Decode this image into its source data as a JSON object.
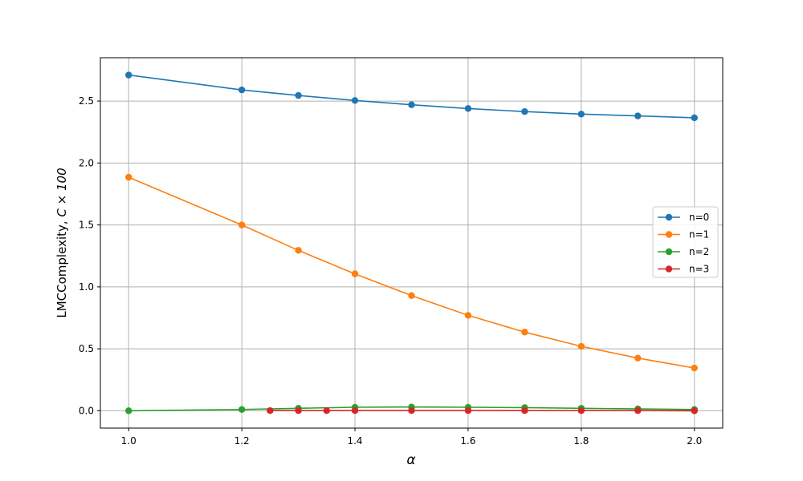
{
  "chart_data": {
    "type": "line",
    "xlabel": "α",
    "ylabel_prefix": "LMCComplexity, ",
    "ylabel_math": "C × 100",
    "xlim": [
      0.95,
      2.05
    ],
    "ylim": [
      -0.14,
      2.85
    ],
    "xticks": [
      1.0,
      1.2,
      1.4,
      1.6,
      1.8,
      2.0
    ],
    "yticks": [
      0.0,
      0.5,
      1.0,
      1.5,
      2.0,
      2.5
    ],
    "xtick_labels": [
      "1.0",
      "1.2",
      "1.4",
      "1.6",
      "1.8",
      "2.0"
    ],
    "ytick_labels": [
      "0.0",
      "0.5",
      "1.0",
      "1.5",
      "2.0",
      "2.5"
    ],
    "grid": true,
    "legend_position": "center-right",
    "series": [
      {
        "name": "n=0",
        "color": "#1f77b4",
        "x": [
          1.0,
          1.2,
          1.3,
          1.4,
          1.5,
          1.6,
          1.7,
          1.8,
          1.9,
          2.0
        ],
        "y": [
          2.71,
          2.59,
          2.545,
          2.505,
          2.47,
          2.44,
          2.415,
          2.395,
          2.38,
          2.365
        ]
      },
      {
        "name": "n=1",
        "color": "#ff7f0e",
        "x": [
          1.0,
          1.2,
          1.3,
          1.4,
          1.5,
          1.6,
          1.7,
          1.8,
          1.9,
          2.0
        ],
        "y": [
          1.885,
          1.5,
          1.295,
          1.105,
          0.93,
          0.77,
          0.635,
          0.52,
          0.425,
          0.345
        ]
      },
      {
        "name": "n=2",
        "color": "#2ca02c",
        "x": [
          1.0,
          1.2,
          1.3,
          1.4,
          1.5,
          1.6,
          1.7,
          1.8,
          1.9,
          2.0
        ],
        "y": [
          0.0,
          0.01,
          0.02,
          0.028,
          0.03,
          0.028,
          0.025,
          0.02,
          0.015,
          0.01
        ]
      },
      {
        "name": "n=3",
        "color": "#d62728",
        "x": [
          1.25,
          1.3,
          1.35,
          1.4,
          1.5,
          1.6,
          1.7,
          1.8,
          1.9,
          2.0
        ],
        "y": [
          0.001,
          0.001,
          0.001,
          0.001,
          0.001,
          0.001,
          0.001,
          0.001,
          0.001,
          0.0
        ]
      }
    ]
  }
}
